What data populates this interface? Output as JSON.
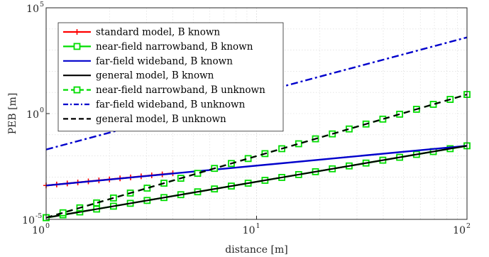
{
  "chart_data": {
    "type": "line",
    "xlabel": "distance [m]",
    "ylabel": "PEB [m]",
    "xscale": "log",
    "yscale": "log",
    "xlim": [
      1,
      100
    ],
    "ylim": [
      1e-05,
      100000
    ],
    "grid": true,
    "legend_position": "top-left",
    "x_ticks": [
      {
        "base": "10",
        "exp": "0",
        "value": 1
      },
      {
        "base": "10",
        "exp": "1",
        "value": 10
      },
      {
        "base": "10",
        "exp": "2",
        "value": 100
      }
    ],
    "y_ticks": [
      {
        "base": "10",
        "exp": "-5",
        "value": 1e-05
      },
      {
        "base": "10",
        "exp": "0",
        "value": 1
      },
      {
        "base": "10",
        "exp": "5",
        "value": 100000
      }
    ],
    "series": [
      {
        "name": "standard model, B known",
        "color": "#ff0000",
        "marker": "plus",
        "dashed": false,
        "x": [
          1,
          4
        ],
        "y": [
          0.0004,
          0.0015
        ]
      },
      {
        "name": "near-field narrowband, B known",
        "color": "#00dd00",
        "marker": "square",
        "dashed": false,
        "x": [
          1,
          100
        ],
        "y": [
          1.2e-05,
          0.03
        ]
      },
      {
        "name": "far-field wideband, B known",
        "color": "#0000cc",
        "marker": "none",
        "dashed": false,
        "x": [
          1,
          100
        ],
        "y": [
          0.0004,
          0.03
        ]
      },
      {
        "name": "general model, B known",
        "color": "#000000",
        "marker": "none",
        "dashed": false,
        "x": [
          1,
          100
        ],
        "y": [
          1.2e-05,
          0.03
        ]
      },
      {
        "name": "near-field narrowband, B unknown",
        "color": "#00dd00",
        "marker": "square",
        "dashed": true,
        "x": [
          1,
          100
        ],
        "y": [
          1.2e-05,
          8
        ]
      },
      {
        "name": "far-field wideband, B unknown",
        "color": "#0000cc",
        "marker": "none",
        "dashed": true,
        "dasharray": "10,4,3,4",
        "x": [
          1,
          100
        ],
        "y": [
          0.02,
          4000
        ]
      },
      {
        "name": "general model, B unknown",
        "color": "#000000",
        "marker": "none",
        "dashed": true,
        "x": [
          1,
          100
        ],
        "y": [
          1.2e-05,
          8
        ]
      }
    ]
  }
}
